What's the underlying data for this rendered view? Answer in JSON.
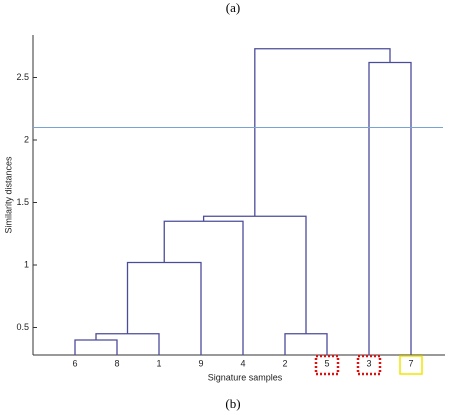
{
  "chart_data": {
    "type": "dendrogram",
    "caption_top": "(a)",
    "caption_bottom": "(b)",
    "x_label": "Signature samples",
    "y_label": "Similarity distances",
    "categories": [
      "6",
      "8",
      "1",
      "9",
      "4",
      "2",
      "5",
      "3",
      "7"
    ],
    "merges": [
      [
        0,
        1,
        0.4
      ],
      [
        9,
        2,
        0.45
      ],
      [
        10,
        3,
        1.02
      ],
      [
        11,
        4,
        1.35
      ],
      [
        5,
        6,
        0.45
      ],
      [
        12,
        13,
        1.39
      ],
      [
        7,
        8,
        2.62
      ],
      [
        14,
        15,
        2.73
      ]
    ],
    "color": "#4b4b9c",
    "threshold": 2.1,
    "threshold_color": "#79a3d3",
    "highlights": [
      {
        "index": 6,
        "color": "#e01010",
        "style": "dotted"
      },
      {
        "index": 7,
        "color": "#e01010",
        "style": "dotted"
      },
      {
        "index": 8,
        "color": "#f2e600",
        "style": "solid"
      }
    ],
    "ylim": [
      0.28,
      2.84
    ],
    "yticks": [
      0.5,
      1,
      1.5,
      2,
      2.5
    ]
  }
}
